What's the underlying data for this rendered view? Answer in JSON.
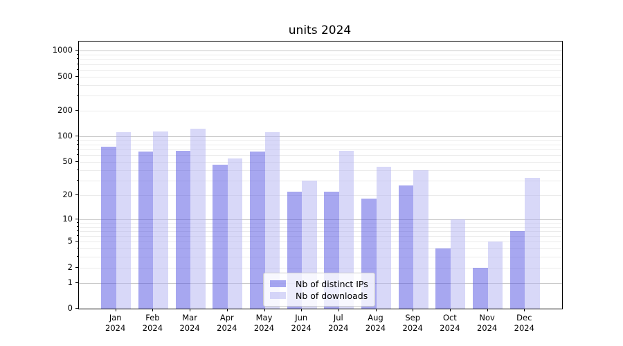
{
  "chart_data": {
    "type": "bar",
    "title": "units 2024",
    "categories": [
      "Jan",
      "Feb",
      "Mar",
      "Apr",
      "May",
      "Jun",
      "Jul",
      "Aug",
      "Sep",
      "Oct",
      "Nov",
      "Dec"
    ],
    "category_year": "2024",
    "series": [
      {
        "name": "Nb of distinct IPs",
        "color": "rgba(80,80,225,0.5)",
        "values": [
          75,
          66,
          68,
          46,
          66,
          22,
          22,
          18,
          26,
          4,
          2,
          7
        ]
      },
      {
        "name": "Nb of downloads",
        "color": "rgba(177,177,242,0.5)",
        "values": [
          112,
          115,
          122,
          55,
          112,
          30,
          68,
          44,
          40,
          10,
          5,
          32
        ]
      }
    ],
    "yscale": "log1p",
    "ylim": [
      0,
      1280
    ],
    "yticks": [
      0,
      1,
      2,
      5,
      10,
      20,
      50,
      100,
      200,
      500,
      1000
    ],
    "major_gridlines": [
      1,
      10,
      100,
      1000
    ],
    "minor_gridlines": [
      2,
      3,
      4,
      5,
      6,
      7,
      8,
      9,
      20,
      30,
      40,
      50,
      60,
      70,
      80,
      90,
      200,
      300,
      400,
      500,
      600,
      700,
      800,
      900
    ],
    "legend_position": "lower center",
    "grid": "on",
    "bar_width_fraction": 0.4
  }
}
